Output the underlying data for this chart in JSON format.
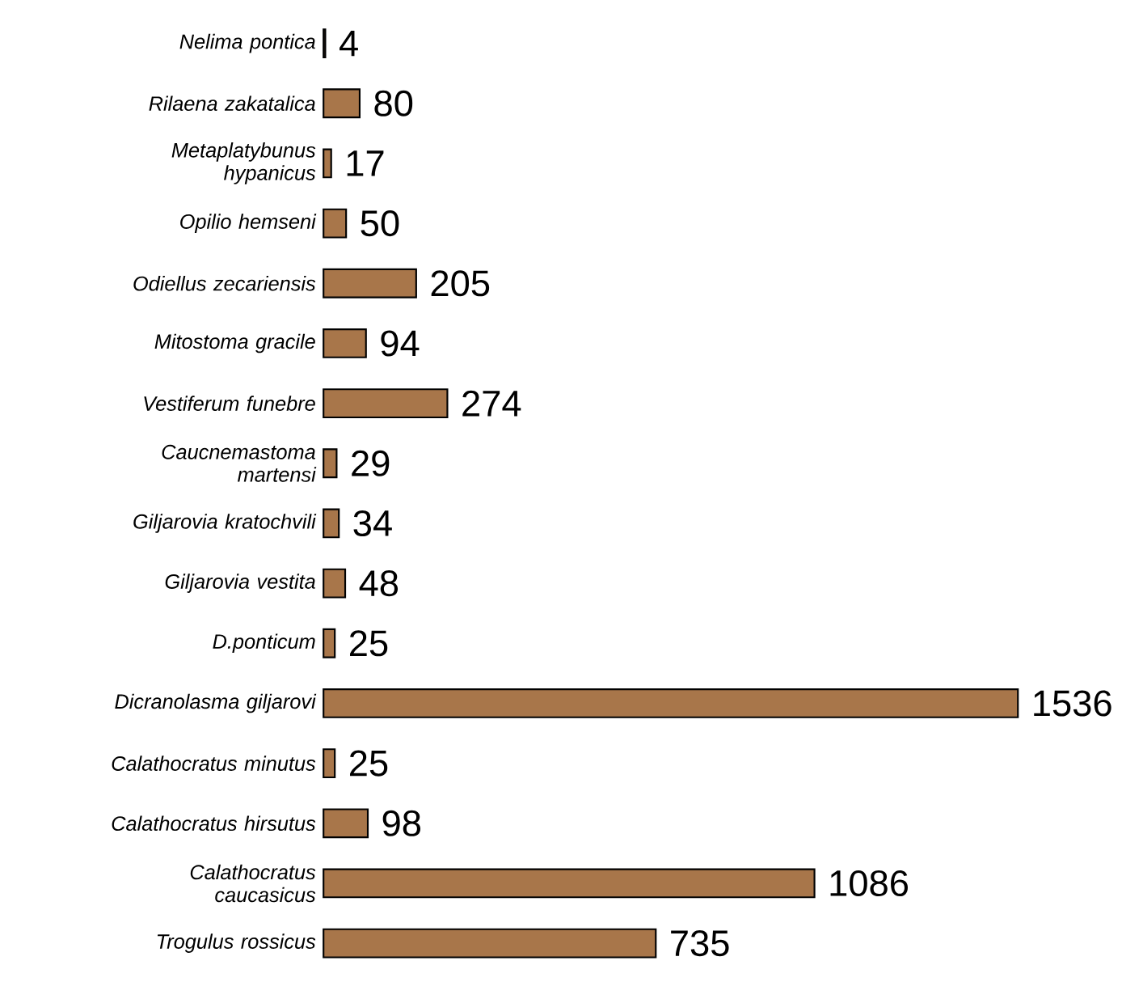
{
  "chart_data": {
    "type": "bar",
    "orientation": "horizontal",
    "data_labels": true,
    "color": "#a8764a",
    "categories": [
      "Nelima pontica",
      "Rilaena zakatalica",
      "Metaplatybunus hypanicus",
      "Opilio hemseni",
      "Odiellus zecariensis",
      "Mitostoma gracile",
      "Vestiferum funebre",
      "Caucnemastoma martensi",
      "Giljarovia kratochvili",
      "Giljarovia vestita",
      "D.ponticum",
      "Dicranolasma giljarovi",
      "Calathocratus minutus",
      "Calathocratus hirsutus",
      "Calathocratus caucasicus",
      "Trogulus rossicus"
    ],
    "values": [
      4,
      80,
      17,
      50,
      205,
      94,
      274,
      29,
      34,
      48,
      25,
      1536,
      25,
      98,
      1086,
      735
    ]
  }
}
